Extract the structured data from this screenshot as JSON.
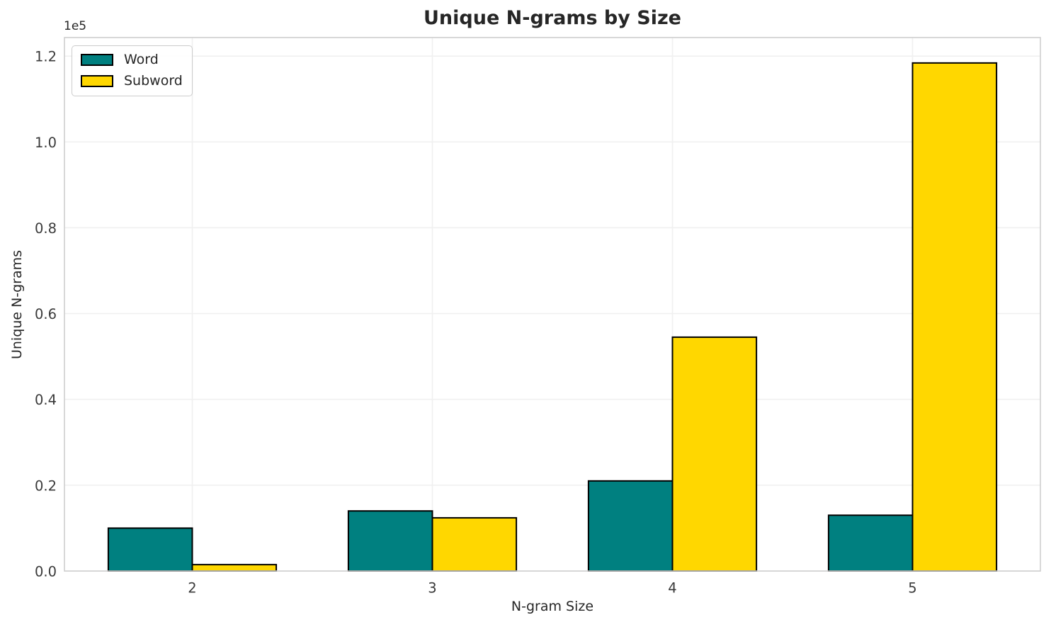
{
  "chart_data": {
    "type": "bar",
    "title": "Unique N-grams by Size",
    "xlabel": "N-gram Size",
    "ylabel": "Unique N-grams",
    "y_offset_text": "1e5",
    "categories": [
      "2",
      "3",
      "4",
      "5"
    ],
    "series": [
      {
        "name": "Word",
        "color": "#008080",
        "values": [
          10000,
          14000,
          21000,
          13000
        ]
      },
      {
        "name": "Subword",
        "color": "#FFD700",
        "values": [
          1500,
          12400,
          54500,
          118400
        ]
      }
    ],
    "bar_edge_color": "#000000",
    "ylim": [
      0,
      124320
    ],
    "yticks": [
      0,
      20000,
      40000,
      60000,
      80000,
      100000,
      120000
    ],
    "ytick_labels": [
      "0.0",
      "0.2",
      "0.4",
      "0.6",
      "0.8",
      "1.0",
      "1.2"
    ],
    "grid": true,
    "grid_color": "#f0f0f0",
    "spine_color": "#cfcfcf",
    "legend_position": "upper left",
    "background_color": "#ffffff"
  }
}
